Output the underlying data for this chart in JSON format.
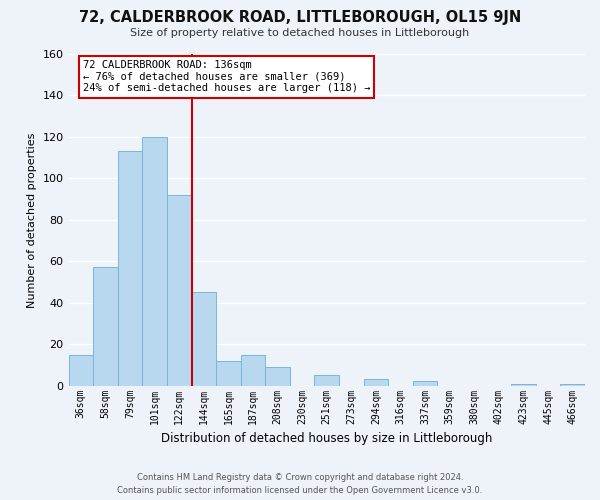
{
  "title": "72, CALDERBROOK ROAD, LITTLEBOROUGH, OL15 9JN",
  "subtitle": "Size of property relative to detached houses in Littleborough",
  "xlabel": "Distribution of detached houses by size in Littleborough",
  "ylabel": "Number of detached properties",
  "bar_labels": [
    "36sqm",
    "58sqm",
    "79sqm",
    "101sqm",
    "122sqm",
    "144sqm",
    "165sqm",
    "187sqm",
    "208sqm",
    "230sqm",
    "251sqm",
    "273sqm",
    "294sqm",
    "316sqm",
    "337sqm",
    "359sqm",
    "380sqm",
    "402sqm",
    "423sqm",
    "445sqm",
    "466sqm"
  ],
  "bar_heights": [
    15,
    57,
    113,
    120,
    92,
    45,
    12,
    15,
    9,
    0,
    5,
    0,
    3,
    0,
    2,
    0,
    0,
    0,
    1,
    0,
    1
  ],
  "bar_color": "#b8d8f0",
  "bar_edge_color": "#7ab5dd",
  "vline_x_index": 5,
  "vline_color": "#cc0000",
  "ylim": [
    0,
    160
  ],
  "yticks": [
    0,
    20,
    40,
    60,
    80,
    100,
    120,
    140,
    160
  ],
  "annotation_title": "72 CALDERBROOK ROAD: 136sqm",
  "annotation_line1": "← 76% of detached houses are smaller (369)",
  "annotation_line2": "24% of semi-detached houses are larger (118) →",
  "annotation_box_color": "#ffffff",
  "annotation_border_color": "#cc0000",
  "footer_line1": "Contains HM Land Registry data © Crown copyright and database right 2024.",
  "footer_line2": "Contains public sector information licensed under the Open Government Licence v3.0.",
  "background_color": "#eef2f9",
  "grid_color": "#ffffff"
}
